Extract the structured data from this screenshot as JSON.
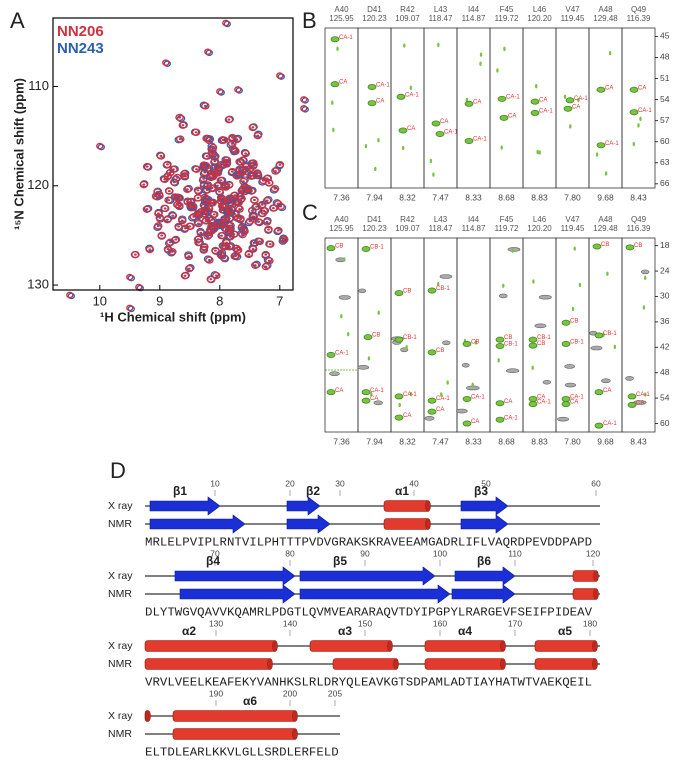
{
  "panel_a": {
    "label": "A",
    "legend": [
      "NN206",
      "NN243"
    ],
    "x_label": "¹H Chemical shift (ppm)",
    "y_label": "¹⁵N Chemical shift (ppm)",
    "x_ticks": [
      "10",
      "9",
      "8",
      "7"
    ],
    "y_ticks": [
      "110",
      "120",
      "130"
    ]
  },
  "panel_b": {
    "label": "B",
    "y_ticks": [
      "45",
      "48",
      "51",
      "54",
      "57",
      "60",
      "63",
      "66"
    ],
    "strips": [
      {
        "residue": "A40",
        "n_shift": "125.95",
        "h_shift": "7.36",
        "peaks": [
          "CA-1",
          "CA"
        ]
      },
      {
        "residue": "D41",
        "n_shift": "120.23",
        "h_shift": "7.94",
        "peaks": [
          "CA-1",
          "CA"
        ]
      },
      {
        "residue": "R42",
        "n_shift": "109.07",
        "h_shift": "8.32",
        "peaks": [
          "CA-1",
          "CA"
        ]
      },
      {
        "residue": "L43",
        "n_shift": "118.47",
        "h_shift": "7.47",
        "peaks": [
          "CA",
          "CA-1"
        ]
      },
      {
        "residue": "I44",
        "n_shift": "114.87",
        "h_shift": "8.33",
        "peaks": [
          "CA",
          "CA-1"
        ]
      },
      {
        "residue": "F45",
        "n_shift": "119.72",
        "h_shift": "8.68",
        "peaks": [
          "CA-1",
          "CA"
        ]
      },
      {
        "residue": "L46",
        "n_shift": "120.20",
        "h_shift": "8.83",
        "peaks": [
          "CA",
          "CA-1"
        ]
      },
      {
        "residue": "V47",
        "n_shift": "119.45",
        "h_shift": "7.80",
        "peaks": [
          "CA-1",
          "CA"
        ]
      },
      {
        "residue": "A48",
        "n_shift": "129.48",
        "h_shift": "9.68",
        "peaks": [
          "CA",
          "CA-1"
        ]
      },
      {
        "residue": "Q49",
        "n_shift": "116.39",
        "h_shift": "8.43",
        "peaks": [
          "CA",
          "CA-1"
        ]
      }
    ]
  },
  "panel_c": {
    "label": "C",
    "y_ticks": [
      "18",
      "24",
      "30",
      "36",
      "42",
      "48",
      "54",
      "60"
    ],
    "strips": [
      {
        "residue": "A40",
        "n_shift": "125.95",
        "h_shift": "7.36",
        "peaks": [
          "CB",
          "CA-1",
          "CA"
        ]
      },
      {
        "residue": "D41",
        "n_shift": "120.23",
        "h_shift": "7.94",
        "peaks": [
          "CB-1",
          "CB",
          "CA-1",
          "CA"
        ]
      },
      {
        "residue": "R42",
        "n_shift": "109.07",
        "h_shift": "8.32",
        "peaks": [
          "CB",
          "CB-1",
          "CA-1",
          "CA"
        ]
      },
      {
        "residue": "L43",
        "n_shift": "118.47",
        "h_shift": "7.47",
        "peaks": [
          "CB-1",
          "CB",
          "CA-1",
          "CA"
        ]
      },
      {
        "residue": "I44",
        "n_shift": "114.87",
        "h_shift": "8.33",
        "peaks": [
          "CB",
          "CA-1",
          "CA"
        ]
      },
      {
        "residue": "F45",
        "n_shift": "119.72",
        "h_shift": "8.68",
        "peaks": [
          "CB",
          "CB-1",
          "CA",
          "CA-1"
        ]
      },
      {
        "residue": "L46",
        "n_shift": "120.20",
        "h_shift": "8.83",
        "peaks": [
          "CB-1",
          "CB",
          "CA",
          "CA-1"
        ]
      },
      {
        "residue": "V47",
        "n_shift": "119.45",
        "h_shift": "7.80",
        "peaks": [
          "CB",
          "CB-1",
          "CA-1",
          "CA"
        ]
      },
      {
        "residue": "A48",
        "n_shift": "129.48",
        "h_shift": "9.68",
        "peaks": [
          "CB",
          "CB-1",
          "CA",
          "CA-1"
        ]
      },
      {
        "residue": "Q49",
        "n_shift": "116.39",
        "h_shift": "8.43",
        "peaks": [
          "CB",
          "CA-1",
          "CA"
        ]
      }
    ]
  },
  "panel_d": {
    "label": "D",
    "rows": [
      {
        "ruler": [
          "10",
          "20",
          "30",
          "40",
          "50",
          "60"
        ],
        "elements": [
          "β1",
          "β2",
          "α1",
          "β3"
        ],
        "xray_label": "X ray",
        "nmr_label": "NMR",
        "sequence": "MRLELPVIPLRNTVILPHTTTPVDVGRAKSKRAVEEAMGADRLIFLVAQRDPEVDDPAPD"
      },
      {
        "ruler": [
          "70",
          "80",
          "90",
          "100",
          "110",
          "120"
        ],
        "elements": [
          "β4",
          "β5",
          "β6"
        ],
        "xray_label": "X ray",
        "nmr_label": "NMR",
        "sequence": "DLYTWGVQAVVKQAMRLPDGTLQVMVEARARAQVTDYIPGPYLRARGEVFSEIFPIDEAV"
      },
      {
        "ruler": [
          "130",
          "140",
          "150",
          "160",
          "170",
          "180"
        ],
        "elements": [
          "α2",
          "α3",
          "α4",
          "α5"
        ],
        "xray_label": "X ray",
        "nmr_label": "NMR",
        "sequence": "VRVLVEELKEAFEKYVANHKSLRLDRYQLEAVKGTSDPAMLADTIAYHATWTVAEKQEIL"
      },
      {
        "ruler": [
          "190",
          "200",
          "205"
        ],
        "elements": [
          "α6"
        ],
        "xray_label": "X ray",
        "nmr_label": "NMR",
        "sequence": "ELTDLEARLKKVLGLLSRDLERFELD"
      }
    ]
  }
}
